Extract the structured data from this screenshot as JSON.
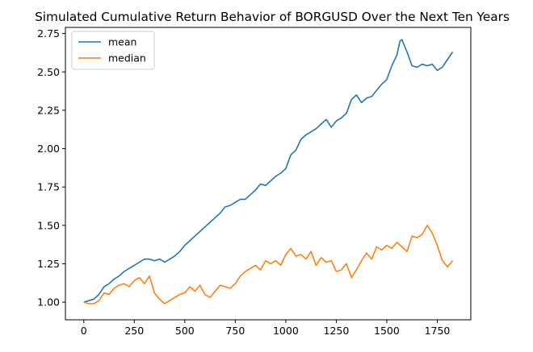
{
  "chart_data": {
    "type": "line",
    "title": "Simulated Cumulative Return Behavior of BORGUSD Over the Next Ten Years",
    "xlabel": "",
    "ylabel": "",
    "xlim": [
      -91,
      1916
    ],
    "ylim": [
      0.885,
      2.79
    ],
    "x_ticks": [
      0,
      250,
      500,
      750,
      1000,
      1250,
      1500,
      1750
    ],
    "y_ticks": [
      1.0,
      1.25,
      1.5,
      1.75,
      2.0,
      2.25,
      2.5,
      2.75
    ],
    "grid": false,
    "legend_position": "top-left",
    "series": [
      {
        "name": "mean",
        "color": "#1f77b4",
        "x": [
          0,
          25,
          50,
          75,
          100,
          125,
          150,
          175,
          200,
          225,
          250,
          275,
          300,
          325,
          350,
          375,
          400,
          425,
          450,
          475,
          500,
          525,
          550,
          575,
          600,
          625,
          650,
          675,
          700,
          725,
          750,
          775,
          800,
          825,
          850,
          875,
          900,
          925,
          950,
          975,
          1000,
          1025,
          1050,
          1075,
          1100,
          1125,
          1150,
          1175,
          1200,
          1225,
          1250,
          1275,
          1300,
          1325,
          1350,
          1375,
          1400,
          1425,
          1450,
          1475,
          1500,
          1525,
          1550,
          1565,
          1575,
          1600,
          1625,
          1650,
          1675,
          1700,
          1725,
          1750,
          1775,
          1800,
          1826
        ],
        "values": [
          1.0,
          1.01,
          1.02,
          1.05,
          1.1,
          1.12,
          1.15,
          1.17,
          1.2,
          1.22,
          1.24,
          1.26,
          1.28,
          1.28,
          1.27,
          1.28,
          1.26,
          1.28,
          1.3,
          1.33,
          1.37,
          1.4,
          1.43,
          1.46,
          1.49,
          1.52,
          1.55,
          1.58,
          1.62,
          1.63,
          1.65,
          1.67,
          1.67,
          1.7,
          1.73,
          1.77,
          1.76,
          1.79,
          1.82,
          1.84,
          1.87,
          1.96,
          1.99,
          2.06,
          2.09,
          2.11,
          2.13,
          2.16,
          2.19,
          2.14,
          2.18,
          2.2,
          2.23,
          2.32,
          2.35,
          2.3,
          2.33,
          2.34,
          2.38,
          2.42,
          2.45,
          2.54,
          2.61,
          2.7,
          2.71,
          2.63,
          2.54,
          2.53,
          2.55,
          2.54,
          2.55,
          2.51,
          2.53,
          2.58,
          2.63
        ]
      },
      {
        "name": "median",
        "color": "#ff7f0e",
        "x": [
          0,
          25,
          50,
          75,
          100,
          125,
          150,
          175,
          200,
          225,
          250,
          275,
          300,
          325,
          350,
          375,
          400,
          425,
          450,
          475,
          500,
          525,
          550,
          575,
          600,
          625,
          650,
          675,
          700,
          725,
          750,
          775,
          800,
          825,
          850,
          875,
          900,
          925,
          950,
          975,
          1000,
          1025,
          1050,
          1075,
          1100,
          1125,
          1150,
          1175,
          1200,
          1225,
          1250,
          1275,
          1300,
          1325,
          1350,
          1375,
          1400,
          1425,
          1450,
          1475,
          1500,
          1525,
          1550,
          1575,
          1600,
          1625,
          1650,
          1675,
          1700,
          1725,
          1750,
          1775,
          1800,
          1826
        ],
        "values": [
          1.0,
          0.99,
          0.99,
          1.01,
          1.06,
          1.05,
          1.09,
          1.11,
          1.12,
          1.1,
          1.14,
          1.16,
          1.12,
          1.17,
          1.06,
          1.02,
          0.99,
          1.01,
          1.03,
          1.05,
          1.06,
          1.1,
          1.07,
          1.11,
          1.05,
          1.03,
          1.07,
          1.11,
          1.1,
          1.09,
          1.12,
          1.17,
          1.2,
          1.22,
          1.24,
          1.21,
          1.27,
          1.25,
          1.27,
          1.24,
          1.31,
          1.35,
          1.3,
          1.31,
          1.28,
          1.33,
          1.24,
          1.29,
          1.26,
          1.27,
          1.2,
          1.21,
          1.25,
          1.16,
          1.21,
          1.27,
          1.32,
          1.28,
          1.36,
          1.34,
          1.37,
          1.35,
          1.39,
          1.36,
          1.33,
          1.43,
          1.42,
          1.44,
          1.5,
          1.45,
          1.37,
          1.27,
          1.23,
          1.27
        ]
      }
    ]
  }
}
